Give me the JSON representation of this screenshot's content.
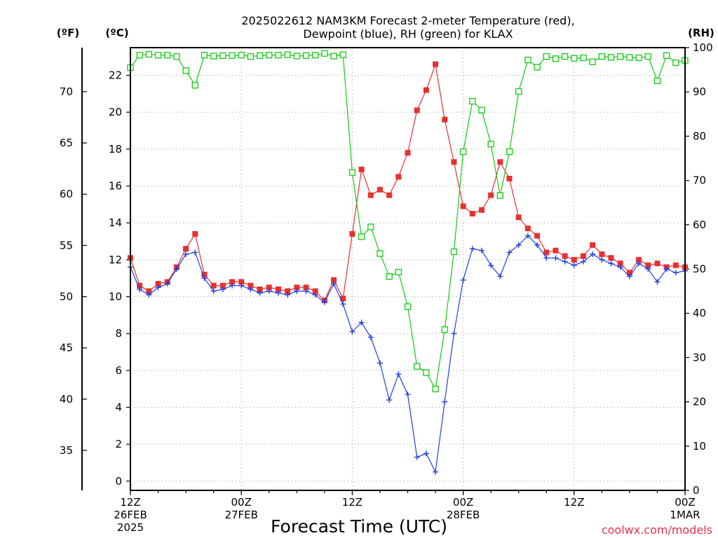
{
  "title_line1": "2025022612 NAM3KM Forecast 2-meter Temperature (red),",
  "title_line2": "Dewpoint (blue), RH (green) for KLAX",
  "unit_f": "(ºF)",
  "unit_c": "(ºC)",
  "unit_rh": "(RH)",
  "xlabel": "Forecast Time (UTC)",
  "credit": "coolwx.com/models",
  "chart_data": {
    "type": "line",
    "title": "2025022612 NAM3KM Forecast 2-meter Temperature (red), Dewpoint (blue), RH (green) for KLAX",
    "xlabel": "Forecast Time (UTC)",
    "ylabel_left_f": "(ºF)",
    "ylabel_left_c": "(ºC)",
    "ylabel_right": "(RH)",
    "x_unit": "forecast hour",
    "xlim": [
      0,
      60
    ],
    "x_ticks": [
      {
        "hour": 0,
        "lines": [
          "12Z",
          "26FEB",
          "2025"
        ]
      },
      {
        "hour": 12,
        "lines": [
          "00Z",
          "27FEB"
        ]
      },
      {
        "hour": 24,
        "lines": [
          "12Z"
        ]
      },
      {
        "hour": 36,
        "lines": [
          "00Z",
          "28FEB"
        ]
      },
      {
        "hour": 48,
        "lines": [
          "12Z"
        ]
      },
      {
        "hour": 60,
        "lines": [
          "00Z",
          "1MAR"
        ]
      }
    ],
    "ylim_c": [
      -0.5,
      23.5
    ],
    "y_ticks_c": [
      0,
      2,
      4,
      6,
      8,
      10,
      12,
      14,
      16,
      18,
      20,
      22
    ],
    "y_ticks_f": [
      35,
      40,
      45,
      50,
      55,
      60,
      65,
      70
    ],
    "ylim_rh": [
      0,
      100
    ],
    "y_ticks_rh": [
      0,
      10,
      20,
      30,
      40,
      50,
      60,
      70,
      80,
      90,
      100
    ],
    "grid": true,
    "series": [
      {
        "name": "Temperature",
        "color": "#e83030",
        "marker": "filled-square",
        "axis": "c",
        "x": [
          0,
          1,
          2,
          3,
          4,
          5,
          6,
          7,
          8,
          9,
          10,
          11,
          12,
          13,
          14,
          15,
          16,
          17,
          18,
          19,
          20,
          21,
          22,
          23,
          24,
          25,
          26,
          27,
          28,
          29,
          30,
          31,
          32,
          33,
          34,
          35,
          36,
          37,
          38,
          39,
          40,
          41,
          42,
          43,
          44,
          45,
          46,
          47,
          48,
          49,
          50,
          51,
          52,
          53,
          54,
          55,
          56,
          57,
          58,
          59,
          60
        ],
        "values": [
          12.1,
          10.6,
          10.3,
          10.7,
          10.8,
          11.6,
          12.6,
          13.4,
          11.2,
          10.6,
          10.6,
          10.8,
          10.8,
          10.6,
          10.4,
          10.5,
          10.4,
          10.3,
          10.5,
          10.5,
          10.3,
          9.8,
          10.9,
          9.9,
          13.4,
          16.9,
          15.5,
          15.8,
          15.5,
          16.5,
          17.8,
          20.1,
          21.2,
          22.6,
          19.6,
          17.3,
          14.9,
          14.5,
          14.7,
          15.5,
          17.3,
          16.4,
          14.3,
          13.7,
          13.3,
          12.4,
          12.5,
          12.2,
          12.0,
          12.2,
          12.8,
          12.3,
          12.1,
          11.8,
          11.3,
          12.0,
          11.7,
          11.8,
          11.6,
          11.7,
          11.6
        ]
      },
      {
        "name": "Dewpoint",
        "color": "#2040e0",
        "marker": "plus",
        "axis": "c",
        "x": [
          0,
          1,
          2,
          3,
          4,
          5,
          6,
          7,
          8,
          9,
          10,
          11,
          12,
          13,
          14,
          15,
          16,
          17,
          18,
          19,
          20,
          21,
          22,
          23,
          24,
          25,
          26,
          27,
          28,
          29,
          30,
          31,
          32,
          33,
          34,
          35,
          36,
          37,
          38,
          39,
          40,
          41,
          42,
          43,
          44,
          45,
          46,
          47,
          48,
          49,
          50,
          51,
          52,
          53,
          54,
          55,
          56,
          57,
          58,
          59,
          60
        ],
        "values": [
          11.6,
          10.4,
          10.1,
          10.5,
          10.7,
          11.5,
          12.3,
          12.4,
          11.0,
          10.3,
          10.4,
          10.6,
          10.6,
          10.4,
          10.2,
          10.3,
          10.2,
          10.1,
          10.3,
          10.3,
          10.1,
          9.7,
          10.7,
          9.6,
          8.1,
          8.6,
          7.8,
          6.4,
          4.4,
          5.8,
          4.7,
          1.3,
          1.5,
          0.5,
          4.3,
          8.0,
          10.9,
          12.6,
          12.5,
          11.7,
          11.1,
          12.4,
          12.8,
          13.3,
          12.8,
          12.1,
          12.1,
          11.9,
          11.7,
          11.9,
          12.3,
          12.0,
          11.8,
          11.6,
          11.1,
          11.8,
          11.5,
          10.8,
          11.5,
          11.3,
          11.4
        ]
      },
      {
        "name": "RH",
        "color": "#10cc10",
        "marker": "open-square",
        "axis": "rh",
        "x": [
          0,
          1,
          2,
          3,
          4,
          5,
          6,
          7,
          8,
          9,
          10,
          11,
          12,
          13,
          14,
          15,
          16,
          17,
          18,
          19,
          20,
          21,
          22,
          23,
          24,
          25,
          26,
          27,
          28,
          29,
          30,
          31,
          32,
          33,
          34,
          35,
          36,
          37,
          38,
          39,
          40,
          41,
          42,
          43,
          44,
          45,
          46,
          47,
          48,
          49,
          50,
          51,
          52,
          53,
          54,
          55,
          56,
          57,
          58,
          59,
          60
        ],
        "values": [
          95.5,
          98.3,
          98.5,
          98.3,
          98.3,
          98.0,
          94.8,
          91.5,
          98.3,
          98.1,
          98.2,
          98.2,
          98.3,
          98.0,
          98.2,
          98.3,
          98.3,
          98.4,
          98.1,
          98.2,
          98.3,
          98.7,
          98.1,
          98.4,
          71.8,
          57.3,
          59.5,
          53.5,
          48.3,
          49.3,
          41.5,
          28.0,
          26.6,
          22.9,
          36.3,
          53.9,
          76.5,
          87.9,
          85.9,
          78.2,
          66.6,
          76.5,
          90.1,
          97.2,
          95.6,
          98.0,
          97.5,
          98.0,
          97.6,
          97.7,
          96.8,
          98.0,
          97.8,
          98.0,
          97.8,
          97.7,
          98.0,
          92.5,
          98.2,
          96.6,
          97.1
        ]
      }
    ]
  }
}
